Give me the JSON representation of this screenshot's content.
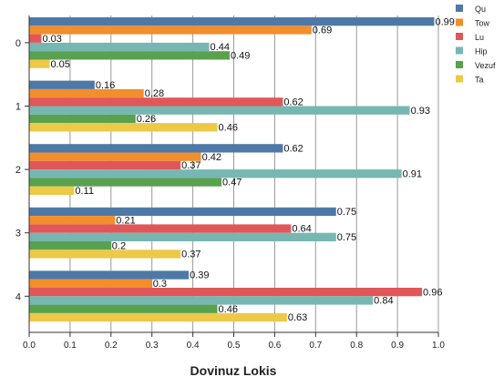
{
  "chart_data": {
    "type": "bar",
    "orientation": "horizontal",
    "categories": [
      "0",
      "1",
      "2",
      "3",
      "4"
    ],
    "series": [
      {
        "name": "Qu",
        "color": "#4e79a7",
        "values": [
          0.99,
          0.16,
          0.62,
          0.75,
          0.39
        ]
      },
      {
        "name": "Tow",
        "color": "#f28e2b",
        "values": [
          0.69,
          0.28,
          0.42,
          0.21,
          0.3
        ]
      },
      {
        "name": "Lu",
        "color": "#e15759",
        "values": [
          0.03,
          0.62,
          0.37,
          0.64,
          0.96
        ]
      },
      {
        "name": "Hip",
        "color": "#76b7b2",
        "values": [
          0.44,
          0.93,
          0.91,
          0.75,
          0.84
        ]
      },
      {
        "name": "Vezuf",
        "color": "#59a14f",
        "values": [
          0.49,
          0.26,
          0.47,
          0.2,
          0.46
        ]
      },
      {
        "name": "Ta",
        "color": "#edc948",
        "values": [
          0.05,
          0.46,
          0.11,
          0.37,
          0.63
        ]
      }
    ],
    "value_labels": {
      "Qu": [
        "0.99",
        "0.16",
        "0.62",
        "0.75",
        "0.39"
      ],
      "Tow": [
        "0.69",
        "0.28",
        "0.42",
        "0.21",
        "0.3"
      ],
      "Lu": [
        "0.03",
        "0.62",
        "0.37",
        "0.64",
        "0.96"
      ],
      "Hip": [
        "0.44",
        "0.93",
        "0.91",
        "0.75",
        "0.84"
      ],
      "Vezuf": [
        "0.49",
        "0.26",
        "0.47",
        "0.2",
        "0.46"
      ],
      "Ta": [
        "0.05",
        "0.46",
        "0.11",
        "0.37",
        "0.63"
      ]
    },
    "xticks": [
      "0.0",
      "0.1",
      "0.2",
      "0.3",
      "0.4",
      "0.5",
      "0.6",
      "0.7",
      "0.8",
      "0.9",
      "1.0"
    ],
    "xlim": [
      0,
      1
    ],
    "xlabel": "Dovinuz Lokis",
    "ylabel": "",
    "title": "",
    "grid": "vertical",
    "legend": "top-right"
  }
}
